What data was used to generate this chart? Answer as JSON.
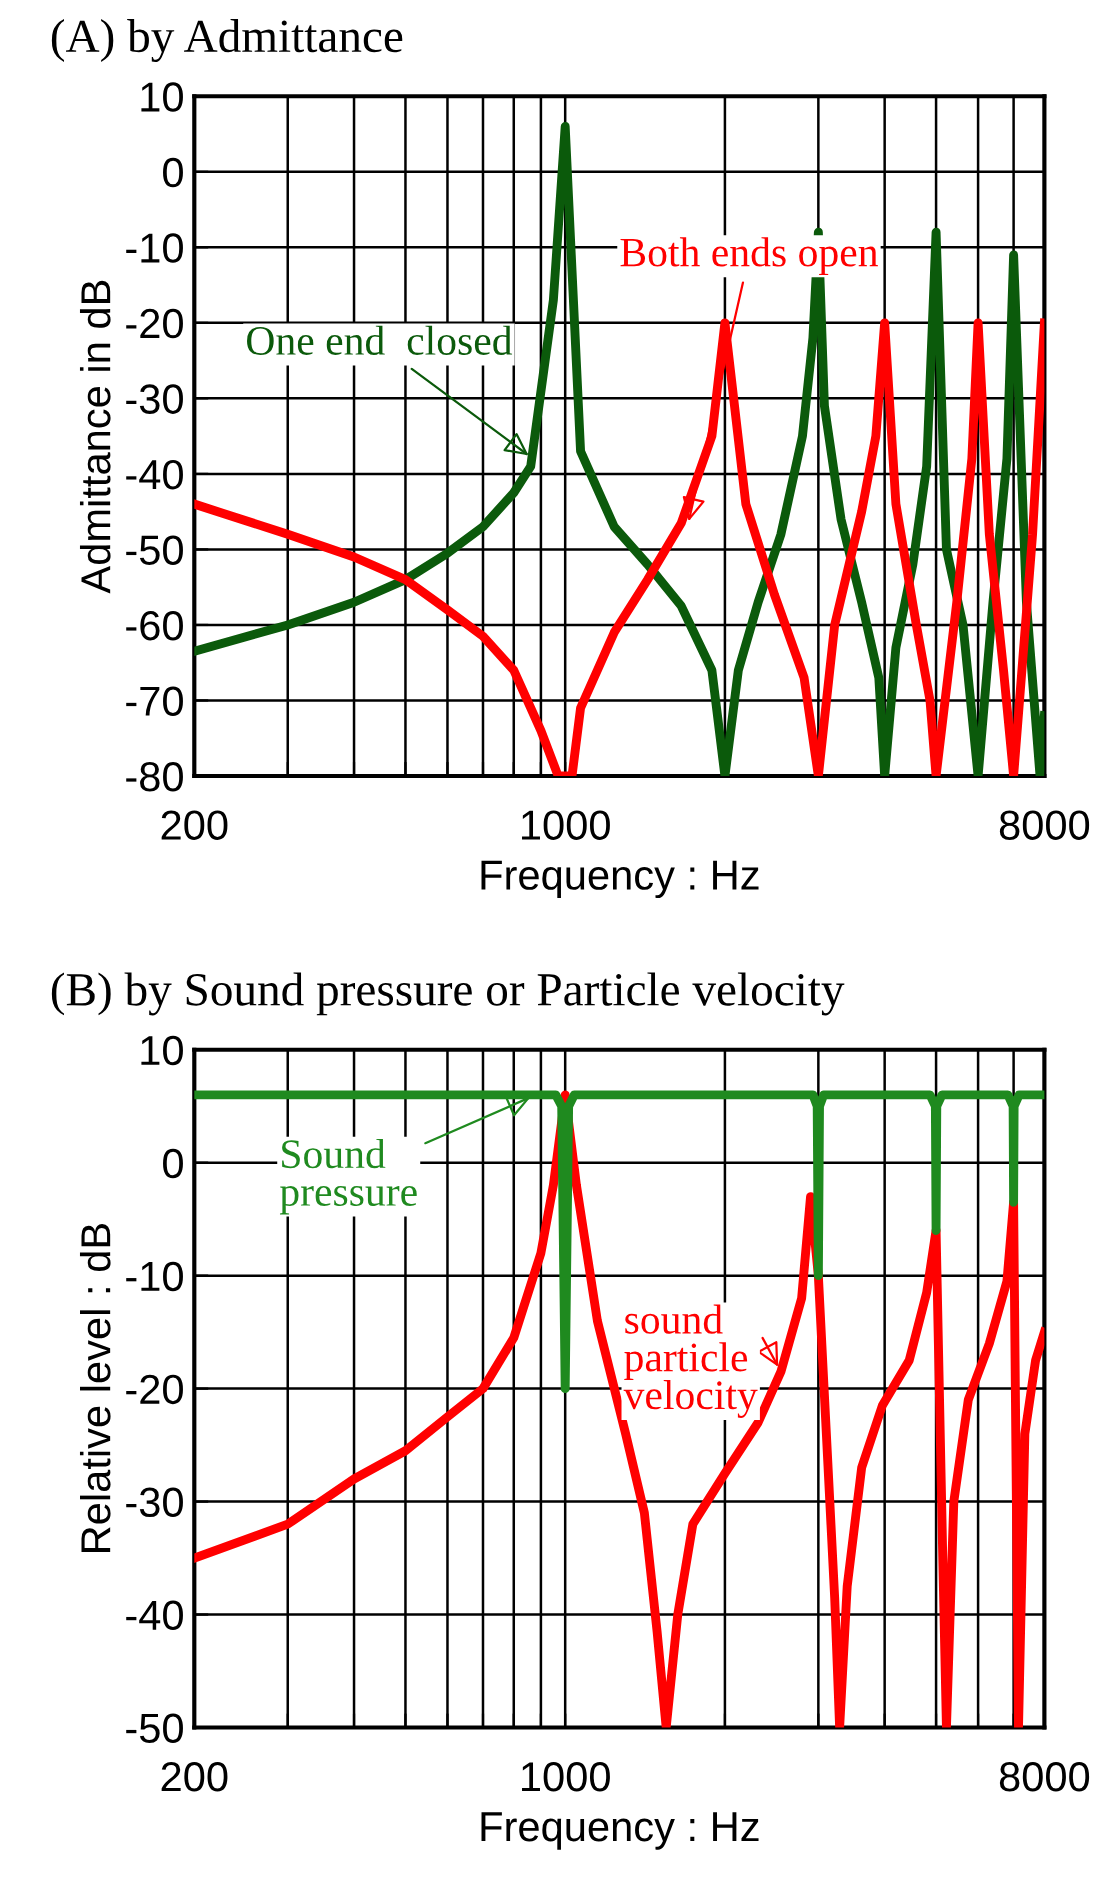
{
  "chart_data": [
    {
      "type": "line",
      "title": "(A) by Admittance",
      "xlabel": "Frequency : Hz",
      "ylabel": "Admittance in dB",
      "log": "x",
      "grid": true,
      "legend": false,
      "marker": "none",
      "line_style": "solid",
      "xlim": [
        200,
        8000
      ],
      "ylim": [
        -80,
        10
      ],
      "xticks": [
        200,
        {
          "value": 300,
          "label": null
        },
        {
          "value": 400,
          "label": null
        },
        {
          "value": 500,
          "label": null
        },
        {
          "value": 600,
          "label": null
        },
        {
          "value": 700,
          "label": null
        },
        {
          "value": 800,
          "label": null
        },
        {
          "value": 900,
          "label": null
        },
        1000,
        {
          "value": 2000,
          "label": null
        },
        {
          "value": 3000,
          "label": null
        },
        {
          "value": 4000,
          "label": null
        },
        {
          "value": 5000,
          "label": null
        },
        {
          "value": 6000,
          "label": null
        },
        {
          "value": 7000,
          "label": null
        },
        8000
      ],
      "yticks": [
        -80,
        -70,
        -60,
        -50,
        -40,
        -30,
        -20,
        -10,
        0,
        10
      ],
      "series": [
        {
          "color": "#0b5a0b",
          "x": [
            200,
            300,
            400,
            500,
            600,
            700,
            800,
            861,
            950,
            1000,
            1069,
            1237,
            1430,
            1655,
            1890,
            2000,
            2120,
            2310,
            2550,
            2800,
            2930,
            3000,
            3080,
            3310,
            3620,
            3900,
            4000,
            4200,
            4520,
            4800,
            5000,
            5230,
            5620,
            6000,
            6400,
            6800,
            7000,
            7400,
            7850,
            8000
          ],
          "values": [
            -63.5,
            -60,
            -57,
            -54,
            -50.5,
            -47,
            -42.5,
            -39,
            -17,
            6,
            -37,
            -47,
            -52,
            -57.5,
            -66,
            -80,
            -66,
            -57,
            -48,
            -35,
            -22,
            -8,
            -31,
            -46,
            -57,
            -67,
            -80,
            -63,
            -52,
            -39,
            -8,
            -50,
            -60,
            -80,
            -57,
            -38,
            -11,
            -57,
            -80,
            -72
          ]
        },
        {
          "color": "#ff0000",
          "x": [
            200,
            300,
            400,
            500,
            600,
            700,
            800,
            900,
            970,
            1030,
            1069,
            1237,
            1430,
            1655,
            1890,
            2000,
            2190,
            2480,
            2820,
            3000,
            3220,
            3620,
            3850,
            4000,
            4200,
            4590,
            4870,
            5000,
            5470,
            5840,
            6000,
            6300,
            6700,
            7000,
            7600,
            8000
          ],
          "values": [
            -44,
            -48,
            -51,
            -54,
            -58,
            -61.5,
            -66,
            -74,
            -80,
            -80,
            -71,
            -61,
            -54,
            -46.5,
            -35,
            -20,
            -44,
            -56,
            -67,
            -80,
            -60,
            -45,
            -35,
            -20,
            -44,
            -60,
            -70,
            -80,
            -57,
            -38,
            -20,
            -48,
            -66,
            -80,
            -48,
            -20
          ]
        }
      ],
      "annotations": [
        {
          "text": "One end  closed",
          "x": 870,
          "y": -38
        },
        {
          "text": "Both ends open",
          "x": 1700,
          "y": -47
        }
      ]
    },
    {
      "type": "line",
      "title": "(B) by Sound pressure or Particle velocity",
      "xlabel": "Frequency : Hz",
      "ylabel": "Relative level : dB",
      "log": "x",
      "grid": true,
      "legend": false,
      "marker": "none",
      "line_style": "solid",
      "xlim": [
        200,
        8000
      ],
      "ylim": [
        -50,
        10
      ],
      "xticks": [
        200,
        {
          "value": 300,
          "label": null
        },
        {
          "value": 400,
          "label": null
        },
        {
          "value": 500,
          "label": null
        },
        {
          "value": 600,
          "label": null
        },
        {
          "value": 700,
          "label": null
        },
        {
          "value": 800,
          "label": null
        },
        {
          "value": 900,
          "label": null
        },
        1000,
        {
          "value": 2000,
          "label": null
        },
        {
          "value": 3000,
          "label": null
        },
        {
          "value": 4000,
          "label": null
        },
        {
          "value": 5000,
          "label": null
        },
        {
          "value": 6000,
          "label": null
        },
        {
          "value": 7000,
          "label": null
        },
        8000
      ],
      "yticks": [
        -50,
        -40,
        -30,
        -20,
        -10,
        0,
        10
      ],
      "series": [
        {
          "color": "#ff0000",
          "x": [
            200,
            300,
            400,
            500,
            600,
            700,
            800,
            900,
            950,
            1000,
            1050,
            1150,
            1300,
            1410,
            1490,
            1550,
            1630,
            1740,
            2000,
            2310,
            2550,
            2790,
            2900,
            3000,
            3220,
            3290,
            3400,
            3620,
            3960,
            4450,
            4800,
            5000,
            5150,
            5230,
            5400,
            5750,
            6300,
            6800,
            7000,
            7150,
            7350,
            7700,
            8000
          ],
          "values": [
            -35,
            -32,
            -28,
            -25.5,
            -22.5,
            -20,
            -15.5,
            -8,
            -2,
            6,
            -2,
            -14,
            -24,
            -31,
            -41.5,
            -50,
            -40,
            -32,
            -27.5,
            -23,
            -18.5,
            -12,
            -3,
            -10,
            -38.5,
            -50,
            -37.5,
            -27,
            -21.5,
            -17.5,
            -11.5,
            -6,
            -35.5,
            -50,
            -30,
            -21,
            -16,
            -10.5,
            -3.5,
            -50,
            -24,
            -17.5,
            -15
          ]
        },
        {
          "color": "#1f8a1f",
          "x": [
            200,
            960,
            985,
            1000,
            1015,
            1040,
            2930,
            2985,
            3000,
            3015,
            3070,
            4870,
            4985,
            5000,
            5015,
            5130,
            6830,
            6985,
            7000,
            7015,
            7170,
            8000
          ],
          "values": [
            6,
            6,
            5,
            -20,
            5,
            6,
            6,
            5,
            -10,
            5,
            6,
            6,
            5,
            -6,
            5,
            6,
            6,
            5,
            -3.5,
            5,
            6,
            6
          ]
        }
      ],
      "annotations": [
        {
          "text": "sound\nparticle\nvelocity",
          "x": 2550,
          "y": -18.5
        },
        {
          "text": "Sound\npressure",
          "x": 880,
          "y": 6
        }
      ]
    }
  ]
}
